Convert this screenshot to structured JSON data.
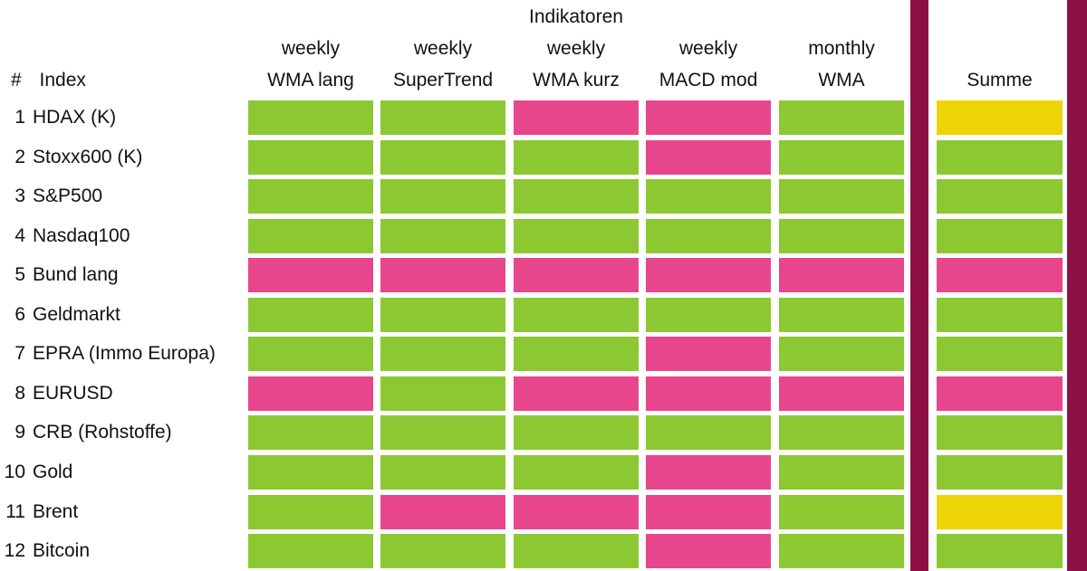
{
  "header": {
    "row_header_symbol": "#",
    "row_header_label": "Index"
  },
  "colors": {
    "green": "#8CC832",
    "pink": "#E8468C",
    "yellow": "#EDD406",
    "divider": "#8C1045",
    "text": "#111111",
    "background": "#FFFFFF"
  },
  "chart_data": {
    "type": "heatmap",
    "title": "Indikatoren",
    "row_axis_label": "# Index",
    "cell_states": [
      "green",
      "pink",
      "yellow"
    ],
    "columns": [
      {
        "period": "weekly",
        "name": "WMA lang"
      },
      {
        "period": "weekly",
        "name": "SuperTrend"
      },
      {
        "period": "weekly",
        "name": "WMA kurz"
      },
      {
        "period": "weekly",
        "name": "MACD mod"
      },
      {
        "period": "monthly",
        "name": "WMA"
      },
      {
        "period": "",
        "name": "Summe"
      }
    ],
    "rows": [
      {
        "num": "1",
        "label": "HDAX (K)",
        "signals": [
          "green",
          "green",
          "pink",
          "pink",
          "green"
        ],
        "summe": "yellow"
      },
      {
        "num": "2",
        "label": "Stoxx600 (K)",
        "signals": [
          "green",
          "green",
          "green",
          "pink",
          "green"
        ],
        "summe": "green"
      },
      {
        "num": "3",
        "label": "S&P500",
        "signals": [
          "green",
          "green",
          "green",
          "green",
          "green"
        ],
        "summe": "green"
      },
      {
        "num": "4",
        "label": "Nasdaq100",
        "signals": [
          "green",
          "green",
          "green",
          "green",
          "green"
        ],
        "summe": "green"
      },
      {
        "num": "5",
        "label": "Bund lang",
        "signals": [
          "pink",
          "pink",
          "pink",
          "pink",
          "pink"
        ],
        "summe": "pink"
      },
      {
        "num": "6",
        "label": "Geldmarkt",
        "signals": [
          "green",
          "green",
          "green",
          "green",
          "green"
        ],
        "summe": "green"
      },
      {
        "num": "7",
        "label": "EPRA (Immo Europa)",
        "signals": [
          "green",
          "green",
          "green",
          "pink",
          "green"
        ],
        "summe": "green"
      },
      {
        "num": "8",
        "label": "EURUSD",
        "signals": [
          "pink",
          "green",
          "pink",
          "pink",
          "pink"
        ],
        "summe": "pink"
      },
      {
        "num": "9",
        "label": "CRB (Rohstoffe)",
        "signals": [
          "green",
          "green",
          "green",
          "green",
          "green"
        ],
        "summe": "green"
      },
      {
        "num": "10",
        "label": "Gold",
        "signals": [
          "green",
          "green",
          "green",
          "pink",
          "green"
        ],
        "summe": "green"
      },
      {
        "num": "11",
        "label": "Brent",
        "signals": [
          "green",
          "pink",
          "pink",
          "pink",
          "green"
        ],
        "summe": "yellow"
      },
      {
        "num": "12",
        "label": "Bitcoin",
        "signals": [
          "green",
          "green",
          "green",
          "pink",
          "green"
        ],
        "summe": "green"
      }
    ]
  }
}
